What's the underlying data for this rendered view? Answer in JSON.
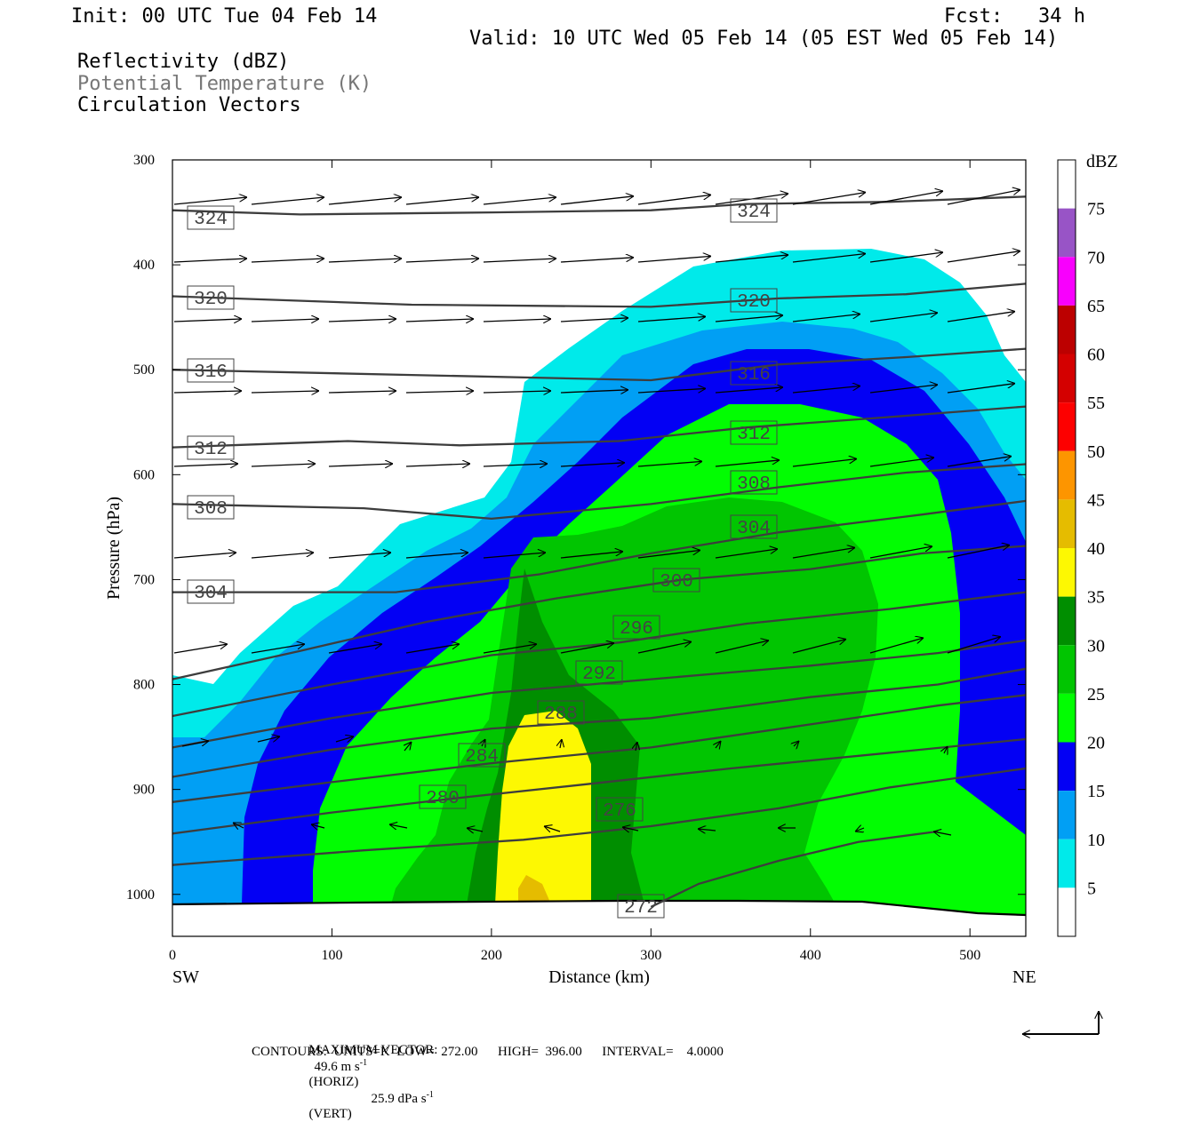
{
  "header": {
    "init": "Init: 00 UTC Tue 04 Feb 14",
    "fcst": "Fcst:   34 h",
    "valid": "Valid: 10 UTC Wed 05 Feb 14 (05 EST Wed 05 Feb 14)",
    "field1": "Reflectivity (dBZ)",
    "field2": "Potential Temperature (K)",
    "field3": "Circulation Vectors"
  },
  "footer": {
    "max_vector_label": "MAXIMUM VECTOR:",
    "max_vector_horiz": "49.6 m s",
    "horiz_exp": "-1",
    "horiz_tag": "(HORIZ)",
    "max_vector_vert": "25.9 dPa s",
    "vert_exp": "-1",
    "vert_tag": "(VERT)",
    "contours": "CONTOURS:  UNITS=K  LOW=  272.00      HIGH=  396.00      INTERVAL=    4.0000"
  },
  "chart_data": {
    "type": "cross-section",
    "xlabel": "Distance (km)",
    "ylabel": "Pressure (hPa)",
    "x_ticks": [
      0,
      100,
      200,
      300,
      400,
      500
    ],
    "y_ticks": [
      300,
      400,
      500,
      600,
      700,
      800,
      900,
      1000
    ],
    "xlim": [
      0,
      535
    ],
    "ylim": [
      300,
      1040
    ],
    "left_end": "SW",
    "right_end": "NE",
    "colorbar": {
      "unit": "dBZ",
      "levels": [
        5,
        10,
        15,
        20,
        25,
        30,
        35,
        40,
        45,
        50,
        55,
        60,
        65,
        70,
        75
      ],
      "colors": [
        "#ffffff",
        "#00eaea",
        "#019ff4",
        "#0300f4",
        "#02fd02",
        "#01c501",
        "#008e00",
        "#fdf802",
        "#e5bc00",
        "#fd9500",
        "#fd0000",
        "#d40000",
        "#bc0000",
        "#f800fd",
        "#9854c6",
        "#ffffff"
      ]
    },
    "theta_contours": [
      {
        "value": "324",
        "points": [
          [
            0,
            348
          ],
          [
            80,
            352
          ],
          [
            200,
            350
          ],
          [
            300,
            348
          ],
          [
            360,
            342
          ],
          [
            450,
            340
          ],
          [
            535,
            335
          ]
        ]
      },
      {
        "value": "320",
        "points": [
          [
            0,
            430
          ],
          [
            150,
            438
          ],
          [
            300,
            440
          ],
          [
            380,
            432
          ],
          [
            460,
            428
          ],
          [
            535,
            418
          ]
        ]
      },
      {
        "value": "316",
        "points": [
          [
            0,
            500
          ],
          [
            150,
            505
          ],
          [
            300,
            510
          ],
          [
            380,
            495
          ],
          [
            460,
            488
          ],
          [
            535,
            480
          ]
        ]
      },
      {
        "value": "312",
        "points": [
          [
            0,
            574
          ],
          [
            110,
            568
          ],
          [
            180,
            572
          ],
          [
            280,
            568
          ],
          [
            360,
            555
          ],
          [
            450,
            545
          ],
          [
            535,
            535
          ]
        ]
      },
      {
        "value": "308",
        "points": [
          [
            0,
            628
          ],
          [
            120,
            632
          ],
          [
            200,
            642
          ],
          [
            300,
            628
          ],
          [
            380,
            612
          ],
          [
            460,
            598
          ],
          [
            535,
            590
          ]
        ]
      },
      {
        "value": "304",
        "points": [
          [
            0,
            712
          ],
          [
            140,
            712
          ],
          [
            230,
            695
          ],
          [
            300,
            675
          ],
          [
            380,
            655
          ],
          [
            470,
            638
          ],
          [
            535,
            625
          ]
        ]
      },
      {
        "value": "300",
        "points": [
          [
            0,
            795
          ],
          [
            80,
            768
          ],
          [
            160,
            740
          ],
          [
            240,
            718
          ],
          [
            320,
            700
          ],
          [
            400,
            690
          ],
          [
            470,
            675
          ],
          [
            535,
            668
          ]
        ]
      },
      {
        "value": "296",
        "points": [
          [
            0,
            830
          ],
          [
            100,
            800
          ],
          [
            200,
            772
          ],
          [
            280,
            760
          ],
          [
            360,
            742
          ],
          [
            450,
            728
          ],
          [
            535,
            712
          ]
        ]
      },
      {
        "value": "292",
        "points": [
          [
            0,
            860
          ],
          [
            100,
            832
          ],
          [
            200,
            808
          ],
          [
            300,
            795
          ],
          [
            400,
            782
          ],
          [
            480,
            770
          ],
          [
            535,
            758
          ]
        ]
      },
      {
        "value": "288",
        "points": [
          [
            0,
            888
          ],
          [
            100,
            862
          ],
          [
            200,
            842
          ],
          [
            300,
            832
          ],
          [
            400,
            812
          ],
          [
            480,
            800
          ],
          [
            535,
            785
          ]
        ]
      },
      {
        "value": "284",
        "points": [
          [
            0,
            912
          ],
          [
            100,
            893
          ],
          [
            200,
            875
          ],
          [
            300,
            860
          ],
          [
            400,
            838
          ],
          [
            480,
            820
          ],
          [
            535,
            810
          ]
        ]
      },
      {
        "value": "280",
        "points": [
          [
            0,
            942
          ],
          [
            100,
            922
          ],
          [
            180,
            908
          ],
          [
            260,
            895
          ],
          [
            350,
            880
          ],
          [
            450,
            865
          ],
          [
            535,
            852
          ]
        ]
      },
      {
        "value": "276",
        "points": [
          [
            0,
            972
          ],
          [
            120,
            958
          ],
          [
            220,
            948
          ],
          [
            300,
            935
          ],
          [
            380,
            918
          ],
          [
            450,
            898
          ],
          [
            535,
            880
          ]
        ]
      },
      {
        "value": "272",
        "points": [
          [
            300,
            1012
          ],
          [
            330,
            990
          ],
          [
            380,
            968
          ],
          [
            430,
            950
          ],
          [
            480,
            940
          ]
        ]
      }
    ]
  }
}
